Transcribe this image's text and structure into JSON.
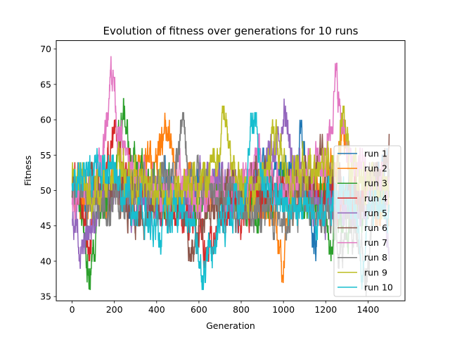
{
  "chart_data": {
    "type": "line",
    "title": "Evolution of fitness over generations for 10 runs",
    "xlabel": "Generation",
    "ylabel": "Fitness",
    "xlim": [
      -75,
      1575
    ],
    "ylim": [
      34.4,
      71.2
    ],
    "xticks": [
      0,
      200,
      400,
      600,
      800,
      1000,
      1200,
      1400
    ],
    "yticks": [
      35,
      40,
      45,
      50,
      55,
      60,
      65,
      70
    ],
    "grid": false,
    "legend_position": "lower-right",
    "x_range": [
      0,
      1500
    ],
    "series": [
      {
        "name": "run 1",
        "color": "#1f77b4",
        "anchors": [
          [
            0,
            48
          ],
          [
            80,
            50
          ],
          [
            150,
            52
          ],
          [
            250,
            49
          ],
          [
            350,
            50
          ],
          [
            450,
            51
          ],
          [
            550,
            49
          ],
          [
            650,
            50
          ],
          [
            750,
            48
          ],
          [
            850,
            51
          ],
          [
            950,
            53
          ],
          [
            1050,
            52
          ],
          [
            1150,
            50
          ],
          [
            1250,
            49
          ],
          [
            1350,
            48
          ],
          [
            1450,
            50
          ],
          [
            1500,
            49
          ]
        ],
        "peaks": [
          [
            1080,
            59
          ],
          [
            1140,
            41
          ],
          [
            1480,
            56
          ]
        ]
      },
      {
        "name": "run 2",
        "color": "#ff7f0e",
        "anchors": [
          [
            0,
            50
          ],
          [
            100,
            49
          ],
          [
            200,
            50
          ],
          [
            300,
            52
          ],
          [
            420,
            56
          ],
          [
            500,
            52
          ],
          [
            600,
            49
          ],
          [
            700,
            50
          ],
          [
            800,
            49
          ],
          [
            900,
            47
          ],
          [
            980,
            44
          ],
          [
            1050,
            48
          ],
          [
            1150,
            51
          ],
          [
            1250,
            52
          ],
          [
            1350,
            50
          ],
          [
            1450,
            47
          ],
          [
            1500,
            48
          ]
        ],
        "peaks": [
          [
            440,
            61
          ],
          [
            990,
            39
          ],
          [
            1280,
            59
          ]
        ]
      },
      {
        "name": "run 3",
        "color": "#2ca02c",
        "anchors": [
          [
            0,
            50
          ],
          [
            50,
            47
          ],
          [
            90,
            43
          ],
          [
            150,
            48
          ],
          [
            230,
            56
          ],
          [
            300,
            53
          ],
          [
            400,
            50
          ],
          [
            500,
            48
          ],
          [
            600,
            47
          ],
          [
            700,
            50
          ],
          [
            800,
            49
          ],
          [
            900,
            48
          ],
          [
            1000,
            50
          ],
          [
            1100,
            49
          ],
          [
            1200,
            48
          ],
          [
            1300,
            46
          ],
          [
            1400,
            48
          ],
          [
            1500,
            50
          ]
        ],
        "peaks": [
          [
            80,
            37
          ],
          [
            240,
            62
          ],
          [
            1220,
            40
          ]
        ]
      },
      {
        "name": "run 4",
        "color": "#d62728",
        "anchors": [
          [
            0,
            50
          ],
          [
            80,
            48
          ],
          [
            150,
            52
          ],
          [
            190,
            56
          ],
          [
            260,
            52
          ],
          [
            350,
            49
          ],
          [
            450,
            47
          ],
          [
            550,
            46
          ],
          [
            630,
            43
          ],
          [
            700,
            46
          ],
          [
            800,
            48
          ],
          [
            900,
            49
          ],
          [
            1000,
            51
          ],
          [
            1100,
            50
          ],
          [
            1200,
            49
          ],
          [
            1300,
            48
          ],
          [
            1400,
            50
          ],
          [
            1500,
            52
          ]
        ],
        "peaks": [
          [
            70,
            39
          ],
          [
            190,
            59
          ],
          [
            640,
            40
          ]
        ]
      },
      {
        "name": "run 5",
        "color": "#9467bd",
        "anchors": [
          [
            0,
            48
          ],
          [
            50,
            44
          ],
          [
            120,
            47
          ],
          [
            200,
            50
          ],
          [
            300,
            48
          ],
          [
            400,
            47
          ],
          [
            500,
            50
          ],
          [
            600,
            52
          ],
          [
            700,
            51
          ],
          [
            800,
            50
          ],
          [
            900,
            53
          ],
          [
            990,
            57
          ],
          [
            1050,
            53
          ],
          [
            1150,
            49
          ],
          [
            1250,
            47
          ],
          [
            1350,
            46
          ],
          [
            1450,
            49
          ],
          [
            1500,
            50
          ]
        ],
        "peaks": [
          [
            30,
            40
          ],
          [
            1000,
            63
          ],
          [
            1500,
            37
          ]
        ]
      },
      {
        "name": "run 6",
        "color": "#8c564b",
        "anchors": [
          [
            0,
            50
          ],
          [
            100,
            51
          ],
          [
            200,
            49
          ],
          [
            300,
            47
          ],
          [
            400,
            48
          ],
          [
            500,
            47
          ],
          [
            560,
            44
          ],
          [
            650,
            47
          ],
          [
            750,
            50
          ],
          [
            850,
            52
          ],
          [
            950,
            51
          ],
          [
            1050,
            50
          ],
          [
            1150,
            52
          ],
          [
            1250,
            51
          ],
          [
            1350,
            49
          ],
          [
            1450,
            52
          ],
          [
            1500,
            53
          ]
        ],
        "peaks": [
          [
            560,
            39
          ],
          [
            1180,
            57
          ],
          [
            1500,
            57
          ]
        ]
      },
      {
        "name": "run 7",
        "color": "#e377c2",
        "anchors": [
          [
            0,
            49
          ],
          [
            80,
            50
          ],
          [
            140,
            55
          ],
          [
            180,
            64
          ],
          [
            210,
            58
          ],
          [
            280,
            52
          ],
          [
            400,
            50
          ],
          [
            500,
            51
          ],
          [
            600,
            49
          ],
          [
            700,
            50
          ],
          [
            800,
            51
          ],
          [
            900,
            52
          ],
          [
            1000,
            51
          ],
          [
            1100,
            52
          ],
          [
            1200,
            56
          ],
          [
            1245,
            61
          ],
          [
            1300,
            55
          ],
          [
            1400,
            51
          ],
          [
            1500,
            50
          ]
        ],
        "peaks": [
          [
            185,
            69
          ],
          [
            1245,
            66
          ],
          [
            880,
            59
          ]
        ]
      },
      {
        "name": "run 8",
        "color": "#7f7f7f",
        "anchors": [
          [
            0,
            50
          ],
          [
            100,
            49
          ],
          [
            200,
            48
          ],
          [
            300,
            50
          ],
          [
            400,
            51
          ],
          [
            500,
            53
          ],
          [
            600,
            52
          ],
          [
            700,
            50
          ],
          [
            800,
            48
          ],
          [
            900,
            47
          ],
          [
            1000,
            46
          ],
          [
            1100,
            48
          ],
          [
            1200,
            47
          ],
          [
            1300,
            45
          ],
          [
            1350,
            43
          ],
          [
            1400,
            47
          ],
          [
            1500,
            50
          ]
        ],
        "peaks": [
          [
            520,
            61
          ],
          [
            1390,
            36
          ],
          [
            1260,
            38
          ]
        ]
      },
      {
        "name": "run 9",
        "color": "#bcbd22",
        "anchors": [
          [
            0,
            52
          ],
          [
            100,
            50
          ],
          [
            200,
            53
          ],
          [
            300,
            51
          ],
          [
            400,
            50
          ],
          [
            500,
            49
          ],
          [
            600,
            51
          ],
          [
            700,
            55
          ],
          [
            750,
            52
          ],
          [
            850,
            50
          ],
          [
            950,
            53
          ],
          [
            1050,
            52
          ],
          [
            1150,
            53
          ],
          [
            1250,
            54
          ],
          [
            1350,
            52
          ],
          [
            1450,
            50
          ],
          [
            1500,
            49
          ]
        ],
        "peaks": [
          [
            720,
            62
          ],
          [
            950,
            61
          ],
          [
            1280,
            62
          ]
        ]
      },
      {
        "name": "run 10",
        "color": "#17becf",
        "anchors": [
          [
            0,
            50
          ],
          [
            80,
            53
          ],
          [
            160,
            54
          ],
          [
            250,
            50
          ],
          [
            350,
            46
          ],
          [
            420,
            44
          ],
          [
            500,
            47
          ],
          [
            600,
            44
          ],
          [
            650,
            41
          ],
          [
            700,
            46
          ],
          [
            800,
            50
          ],
          [
            850,
            54
          ],
          [
            950,
            49
          ],
          [
            1050,
            48
          ],
          [
            1150,
            47
          ],
          [
            1250,
            49
          ],
          [
            1350,
            48
          ],
          [
            1450,
            47
          ],
          [
            1500,
            48
          ]
        ],
        "peaks": [
          [
            850,
            62
          ],
          [
            610,
            38
          ],
          [
            1370,
            37
          ]
        ]
      }
    ]
  }
}
